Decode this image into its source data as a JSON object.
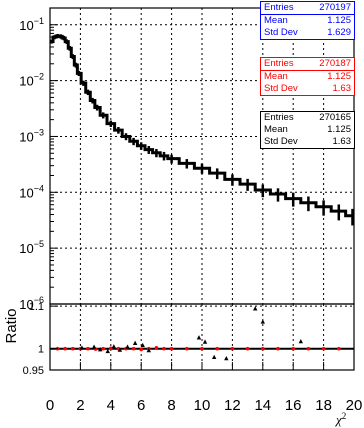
{
  "chart_data": [
    {
      "type": "line",
      "panel": "main",
      "log_y": true,
      "xlim": [
        0,
        20
      ],
      "ylim_log10": [
        -6,
        -0.7
      ],
      "y_ticks": [
        {
          "exp": -1,
          "label": "10",
          "sup": "−1"
        },
        {
          "exp": -2,
          "label": "10",
          "sup": "−2"
        },
        {
          "exp": -3,
          "label": "10",
          "sup": "−3"
        },
        {
          "exp": -4,
          "label": "10",
          "sup": "−4"
        },
        {
          "exp": -5,
          "label": "10",
          "sup": "−5"
        },
        {
          "exp": -6,
          "label": "10",
          "sup": "−6"
        }
      ],
      "grid": true,
      "series": [
        {
          "style": "histogram",
          "color": "#000000",
          "x": [
            0.1,
            0.3,
            0.5,
            0.7,
            0.9,
            1.1,
            1.3,
            1.5,
            1.7,
            1.9,
            2.2,
            2.5,
            2.8,
            3.1,
            3.5,
            4,
            4.5,
            5,
            5.5,
            6,
            6.5,
            7,
            7.5,
            8,
            9,
            10,
            11,
            12,
            13,
            14,
            15,
            16,
            17,
            18,
            19,
            19.9
          ],
          "y": [
            0.05,
            0.06,
            0.063,
            0.062,
            0.058,
            0.05,
            0.038,
            0.027,
            0.019,
            0.0135,
            0.009,
            0.0062,
            0.0044,
            0.0033,
            0.0024,
            0.0017,
            0.0013,
            0.001,
            0.00082,
            0.00068,
            0.00058,
            0.00051,
            0.00045,
            0.0004,
            0.00033,
            0.00027,
            0.00022,
            0.00017,
            0.00014,
            0.00011,
            9.3e-05,
            7.7e-05,
            6.5e-05,
            5.5e-05,
            4.6e-05,
            3.8e-05
          ]
        }
      ]
    },
    {
      "type": "scatter",
      "panel": "ratio",
      "xlim": [
        0,
        20
      ],
      "ylim": [
        0.95,
        1.105
      ],
      "ylabel": "Ratio",
      "y_ticks": [
        {
          "value": 0.95,
          "label": "0.95"
        },
        {
          "value": 1,
          "label": "1"
        },
        {
          "value": 1.1,
          "label": "1.1"
        }
      ],
      "x_ticks": [
        {
          "value": 0,
          "label": "0"
        },
        {
          "value": 2,
          "label": "2"
        },
        {
          "value": 4,
          "label": "4"
        },
        {
          "value": 6,
          "label": "6"
        },
        {
          "value": 8,
          "label": "8"
        },
        {
          "value": 10,
          "label": "10"
        },
        {
          "value": 12,
          "label": "12"
        },
        {
          "value": 14,
          "label": "14"
        },
        {
          "value": 16,
          "label": "16"
        },
        {
          "value": 18,
          "label": "18"
        },
        {
          "value": 20,
          "label": "20"
        }
      ],
      "xlabel": "χ",
      "xlabel_sup": "2",
      "grid": true,
      "reference_line": 1,
      "series": [
        {
          "marker": "circle",
          "color": "#ff0000",
          "x": [
            0.5,
            1,
            1.5,
            2,
            2.5,
            3,
            3.5,
            4,
            4.5,
            5,
            5.5,
            6,
            6.5,
            7,
            7.5,
            8,
            9,
            10,
            11,
            12,
            13,
            14,
            15,
            16,
            17,
            18,
            19
          ],
          "y": [
            1,
            1,
            1,
            1,
            1,
            0.999,
            1,
            1.001,
            1,
            1,
            1,
            0.998,
            1,
            1.002,
            1,
            1,
            1,
            1,
            1,
            1,
            1,
            1,
            1,
            1,
            1,
            1,
            1
          ]
        },
        {
          "marker": "triangle",
          "color": "#000000",
          "x": [
            2.1,
            2.9,
            3.3,
            3.8,
            4.2,
            4.6,
            5.1,
            5.6,
            6.1,
            6.5,
            9.8,
            10.2,
            10.8,
            11.6,
            13.5,
            14,
            16.5
          ],
          "y": [
            1.002,
            1.004,
            0.998,
            0.994,
            1.005,
            0.997,
            1.004,
            1.013,
            1.008,
            0.996,
            1.026,
            1.016,
            0.98,
            0.977,
            1.094,
            1.063,
            1.017
          ]
        }
      ]
    }
  ],
  "stat_boxes": [
    {
      "color": "#0000ff",
      "rows": [
        {
          "label": "Entries",
          "value": "270197"
        },
        {
          "label": "Mean",
          "value": "1.125"
        },
        {
          "label": "Std Dev",
          "value": "1.629"
        }
      ]
    },
    {
      "color": "#ff0000",
      "rows": [
        {
          "label": "Entries",
          "value": "270187"
        },
        {
          "label": "Mean",
          "value": "1.125"
        },
        {
          "label": "Std Dev",
          "value": "1.63"
        }
      ]
    },
    {
      "color": "#000000",
      "rows": [
        {
          "label": "Entries",
          "value": "270165"
        },
        {
          "label": "Mean",
          "value": "1.125"
        },
        {
          "label": "Std Dev",
          "value": "1.63"
        }
      ]
    }
  ]
}
